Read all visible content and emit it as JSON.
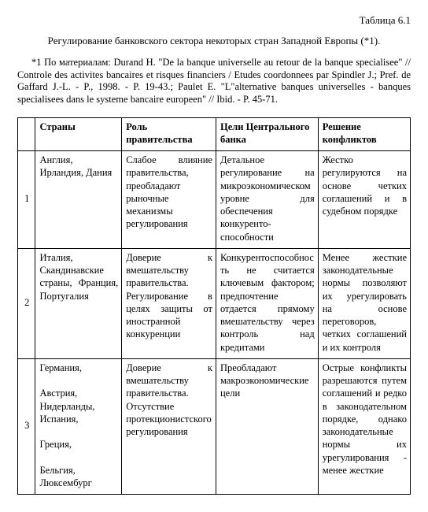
{
  "header": {
    "table_label": "Таблица 6.1",
    "title": "Регулирование банковского сектора некоторых стран Западной Европы  (*1).",
    "footnote": "*1 По материалам: Durand H. \"De la banque universelle au retour de la banque specialisee\" // Controle des activites bancaires et risques financiers / Etudes coordonnees par Spindler J.; Pref. de Gaffard J.-L. - P., 1998. - P. 19-43.; Paulet E. \"L\"alternative banques universelles - banques specialisees dans le systeme bancaire europeen\" // Ibid. - P. 45-71."
  },
  "table": {
    "columns": {
      "c0": "",
      "c1": "Страны",
      "c2": "Роль правительства",
      "c3": "Цели Центрального банка",
      "c4": "Решение конфликтов"
    },
    "rows": [
      {
        "idx": "1",
        "countries": "Англия, Ирландия, Дания",
        "gov_role": "Слабое влияние правительства, преобладают рыночные механизмы регулирования",
        "cb_goals": "Детальное регулирование на микроэкономическом уровне для обеспечения конкуренто-способности",
        "conflicts": "Жестко регулируются на основе четких соглашений и в судебном порядке"
      },
      {
        "idx": "2",
        "countries": "Италия, Скандинавские страны, Франция, Португалия",
        "gov_role": "Доверие к вмешательству правительства. Регулирование в целях защиты от иностранной конкуренции",
        "cb_goals": "Конкурентоспособность не считается ключевым фактором; предпочтение отдается прямому вмешательству через контроль над кредитами",
        "conflicts": "Менее жесткие законодательные нормы позволяют их урегулировать на основе переговоров, четких соглашений и их контроля"
      },
      {
        "idx": "3",
        "countries": "Германия,\n\nАвстрия, Нидерланды, Испания,\n\nГреция,\n\nБельгия, Люксембург",
        "gov_role": "Доверие к вмешательству правительства. Отсутствие протекционистского регулирования",
        "cb_goals": "Преобладают макроэкономические цели",
        "conflicts": "Острые конфликты разрешаются путем соглашений и редко в законодательном порядке, однако законодательные нормы их урегулирования - менее жесткие"
      }
    ]
  }
}
